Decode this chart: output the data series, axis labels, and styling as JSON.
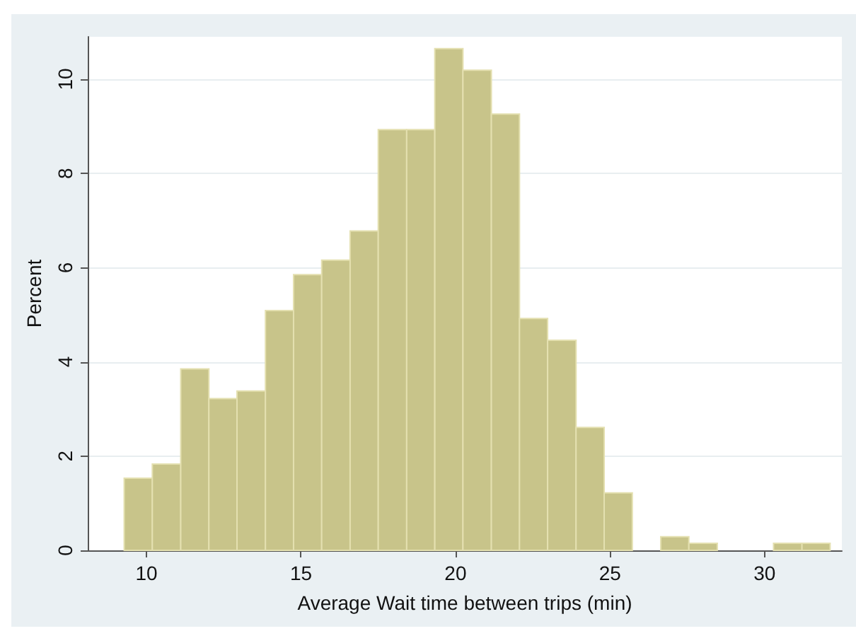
{
  "chart_data": {
    "type": "histogram",
    "xlabel": "Average Wait time between trips (min)",
    "ylabel": "Percent",
    "bins": [
      9.28,
      10.19,
      11.11,
      12.02,
      12.93,
      13.85,
      14.76,
      15.67,
      16.59,
      17.5,
      18.42,
      19.33,
      20.24,
      21.16,
      22.07,
      22.98,
      23.9,
      24.81,
      25.72,
      26.64,
      27.55,
      28.47,
      29.38,
      30.29,
      31.21,
      32.12
    ],
    "values": [
      1.53,
      1.83,
      3.85,
      3.22,
      3.38,
      5.09,
      5.85,
      6.16,
      6.78,
      8.93,
      8.93,
      10.65,
      10.19,
      9.26,
      4.92,
      4.46,
      2.61,
      1.22,
      0,
      0.29,
      0.15,
      0,
      0,
      0.15,
      0.15
    ],
    "color": "#c8c48a",
    "xlim": [
      8.1,
      32.5
    ],
    "xticks": [
      10,
      15,
      20,
      25,
      30
    ],
    "ylim": [
      0,
      10.9
    ],
    "yticks": [
      0,
      2,
      4,
      6,
      8,
      10
    ],
    "grid": "y",
    "legend": false
  }
}
